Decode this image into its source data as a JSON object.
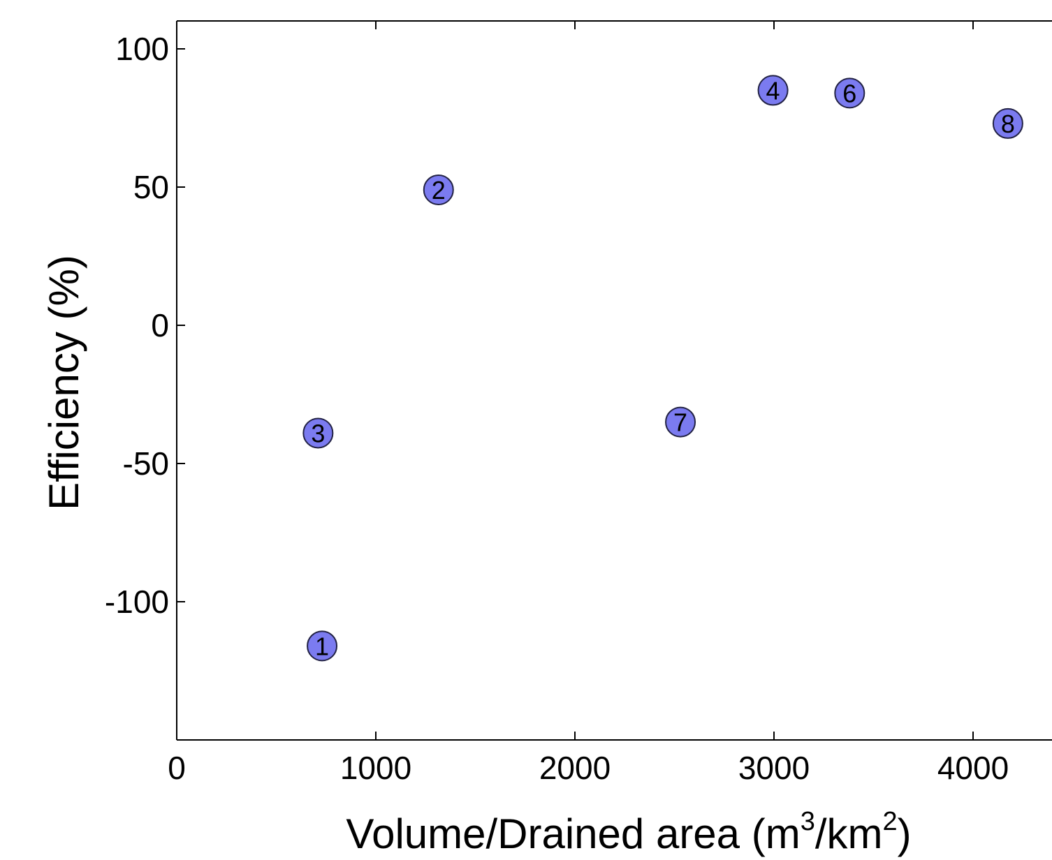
{
  "chart_data": {
    "type": "scatter",
    "title": "",
    "xlabel": {
      "main": "Volume/Drained area (m",
      "sup1": "3",
      "mid": "/km",
      "sup2": "2",
      "end": ")"
    },
    "ylabel": "Efficiency  (%)",
    "xlim": [
      0,
      4400
    ],
    "ylim": [
      -150,
      110
    ],
    "xticks": [
      0,
      1000,
      2000,
      3000,
      4000
    ],
    "yticks": [
      100,
      50,
      0,
      -50,
      -100
    ],
    "xtick_labels": [
      "0",
      "1000",
      "2000",
      "3000",
      "4000"
    ],
    "ytick_labels": [
      "100",
      "50",
      "0",
      "-50",
      "-100"
    ],
    "grid": false,
    "legend": "none",
    "marker_color": "#7b7bf0",
    "marker_edge": "#222244",
    "points": [
      {
        "label": "1",
        "x": 730,
        "y": -116
      },
      {
        "label": "2",
        "x": 1315,
        "y": 49
      },
      {
        "label": "3",
        "x": 710,
        "y": -39
      },
      {
        "label": "4",
        "x": 2995,
        "y": 85
      },
      {
        "label": "6",
        "x": 3380,
        "y": 84
      },
      {
        "label": "7",
        "x": 2530,
        "y": -35
      },
      {
        "label": "8",
        "x": 4175,
        "y": 73
      }
    ]
  }
}
